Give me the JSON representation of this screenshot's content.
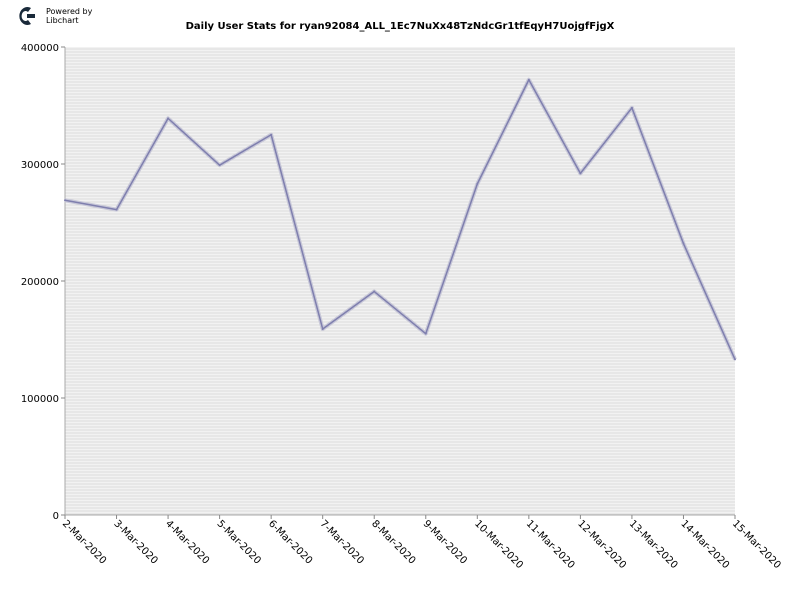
{
  "brand": {
    "line1": "Powered by",
    "line2": "Libchart"
  },
  "chart_data": {
    "type": "line",
    "title": "Daily User Stats for ryan92084_ALL_1Ec7NuXx48TzNdcGr1tfEqyH7UojgfFjgX",
    "xlabel": "",
    "ylabel": "",
    "ylim": [
      0,
      400000
    ],
    "yticks": [
      0,
      100000,
      200000,
      300000,
      400000
    ],
    "ytick_labels": [
      "0",
      "100000",
      "200000",
      "300000",
      "400000"
    ],
    "grid": true,
    "legend": "none",
    "line_color": "#7f7fae",
    "categories": [
      "2-Mar-2020",
      "3-Mar-2020",
      "4-Mar-2020",
      "5-Mar-2020",
      "6-Mar-2020",
      "7-Mar-2020",
      "8-Mar-2020",
      "9-Mar-2020",
      "10-Mar-2020",
      "11-Mar-2020",
      "12-Mar-2020",
      "13-Mar-2020",
      "14-Mar-2020",
      "15-Mar-2020"
    ],
    "values": [
      269000,
      261000,
      339000,
      299000,
      325000,
      159000,
      191000,
      155000,
      283000,
      372000,
      292000,
      348000,
      232000,
      133000
    ]
  }
}
